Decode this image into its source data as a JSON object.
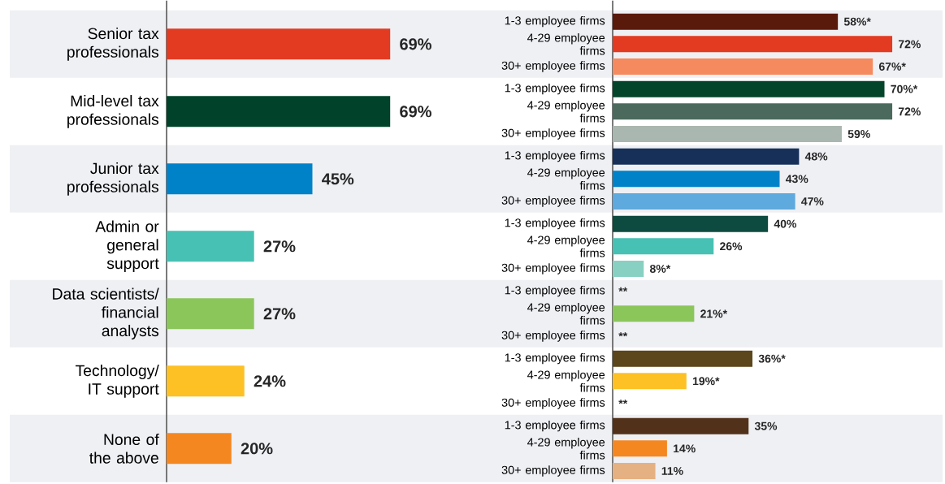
{
  "chart_data": [
    {
      "type": "bar",
      "orientation": "horizontal",
      "categories": [
        "Senior tax professionals",
        "Mid-level tax professionals",
        "Junior tax professionals",
        "Admin or general support",
        "Data scientists/ financial analysts",
        "Technology/ IT support",
        "None of the above"
      ],
      "values": [
        69,
        69,
        45,
        27,
        27,
        24,
        20
      ],
      "value_labels": [
        "69%",
        "69%",
        "45%",
        "27%",
        "27%",
        "24%",
        "20%"
      ],
      "colors": [
        "#e33b22",
        "#00432a",
        "#0082c9",
        "#47c1b3",
        "#8bc65a",
        "#fdc125",
        "#f58720"
      ]
    },
    {
      "type": "bar",
      "orientation": "horizontal",
      "categories": [
        "1-3 employee firms",
        "4-29 employee firms",
        "30+ employee firms",
        "1-3 employee firms",
        "4-29 employee firms",
        "30+ employee firms",
        "1-3 employee firms",
        "4-29 employee firms",
        "30+ employee firms",
        "1-3 employee firms",
        "4-29 employee firms",
        "30+ employee firms",
        "1-3 employee firms",
        "4-29 employee firms",
        "30+ employee firms",
        "1-3 employee firms",
        "4-29 employee firms",
        "30+ employee firms",
        "1-3 employee firms",
        "4-29 employee firms",
        "30+ employee firms"
      ],
      "values": [
        58,
        72,
        67,
        70,
        72,
        59,
        48,
        43,
        47,
        40,
        26,
        8,
        null,
        21,
        null,
        36,
        19,
        null,
        35,
        14,
        11
      ],
      "value_labels": [
        "58%*",
        "72%",
        "67%*",
        "70%*",
        "72%",
        "59%",
        "48%",
        "43%",
        "47%",
        "40%",
        "26%",
        "8%*",
        "**",
        "21%*",
        "**",
        "36%*",
        "19%*",
        "**",
        "35%",
        "14%",
        "11%"
      ],
      "colors": [
        "#5a1a0b",
        "#e33b22",
        "#f58a5e",
        "#02452a",
        "#4b6a5d",
        "#aab7b0",
        "#16305a",
        "#0082c9",
        "#5ea9dd",
        "#0d4a3f",
        "#47c1b3",
        "#88d1c2",
        null,
        "#8bc65a",
        null,
        "#5c471c",
        "#fdc125",
        null,
        "#52311a",
        "#f58720",
        "#e6b182"
      ]
    }
  ]
}
